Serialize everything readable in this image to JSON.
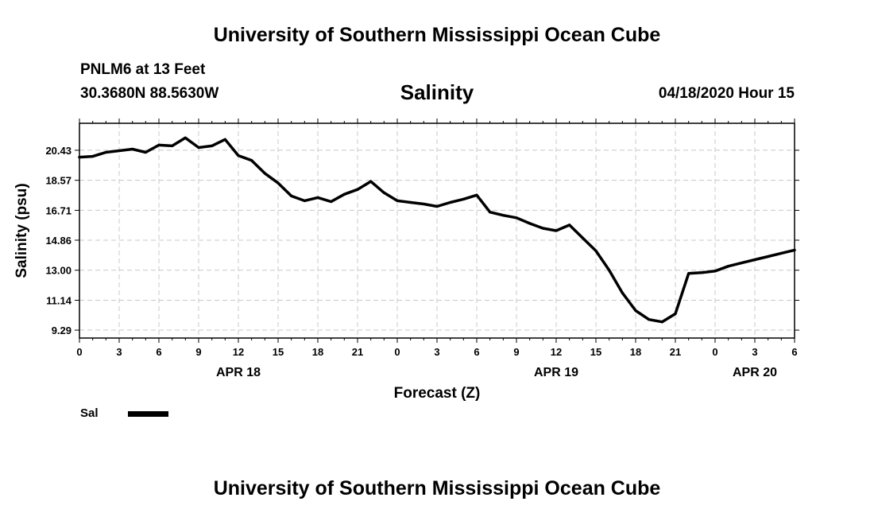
{
  "header": {
    "title": "University of Southern Mississippi Ocean Cube",
    "station": "PNLM6 at 13 Feet",
    "coordinates": "30.3680N 88.5630W",
    "plot_title": "Salinity",
    "valid_time": "04/18/2020 Hour 15"
  },
  "footer": {
    "title": "University of Southern Mississippi Ocean Cube"
  },
  "legend": {
    "label": "Sal",
    "color": "#000000"
  },
  "chart_data": {
    "type": "line",
    "title": "Salinity",
    "xlabel": "Forecast (Z)",
    "ylabel": "Salinity (psu)",
    "xlim": [
      0,
      54
    ],
    "ylim": [
      8.8,
      22.1
    ],
    "grid": true,
    "y_ticks": [
      9.29,
      11.14,
      13.0,
      14.86,
      16.71,
      18.57,
      20.43
    ],
    "y_tick_labels": [
      "9.29",
      "11.14",
      "13.00",
      "14.86",
      "16.71",
      "18.57",
      "20.43"
    ],
    "x_ticks": [
      0,
      3,
      6,
      9,
      12,
      15,
      18,
      21,
      24,
      27,
      30,
      33,
      36,
      39,
      42,
      45,
      48,
      51,
      54
    ],
    "x_tick_labels": [
      "0",
      "3",
      "6",
      "9",
      "12",
      "15",
      "18",
      "21",
      "0",
      "3",
      "6",
      "9",
      "12",
      "15",
      "18",
      "21",
      "0",
      "3",
      "6"
    ],
    "date_labels": [
      {
        "label": "APR 18",
        "x": 12
      },
      {
        "label": "APR 19",
        "x": 36
      },
      {
        "label": "APR 20",
        "x": 51
      }
    ],
    "series": [
      {
        "name": "Sal",
        "color": "#000000",
        "x": [
          0,
          1,
          2,
          3,
          4,
          5,
          6,
          7,
          8,
          9,
          10,
          11,
          12,
          13,
          14,
          15,
          16,
          17,
          18,
          19,
          20,
          21,
          22,
          23,
          24,
          25,
          26,
          27,
          28,
          29,
          30,
          31,
          32,
          33,
          34,
          35,
          36,
          37,
          38,
          39,
          40,
          41,
          42,
          43,
          44,
          45,
          46,
          47,
          48,
          49,
          50,
          51,
          52,
          53,
          54
        ],
        "y": [
          20.0,
          20.05,
          20.3,
          20.4,
          20.5,
          20.3,
          20.75,
          20.7,
          21.2,
          20.6,
          20.7,
          21.1,
          20.1,
          19.8,
          19.0,
          18.4,
          17.6,
          17.3,
          17.5,
          17.25,
          17.7,
          18.0,
          18.5,
          17.8,
          17.3,
          17.2,
          17.1,
          16.95,
          17.2,
          17.4,
          17.65,
          16.6,
          16.4,
          16.25,
          15.9,
          15.6,
          15.45,
          15.8,
          15.0,
          14.2,
          13.0,
          11.6,
          10.5,
          9.95,
          9.8,
          10.3,
          12.8,
          12.85,
          12.95,
          13.25,
          13.45,
          13.65,
          13.85,
          14.05,
          14.25
        ]
      }
    ]
  }
}
